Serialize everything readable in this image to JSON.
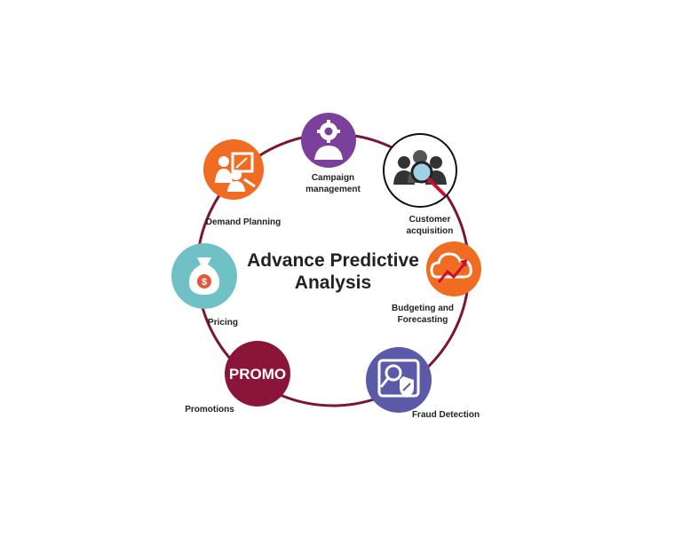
{
  "title": {
    "line1": "Advance Predictive",
    "line2": "Analysis"
  },
  "colors": {
    "ring": "#7a1532",
    "campaign": "#7b3f9c",
    "customer": "#ffffff",
    "budgeting": "#ef6c22",
    "fraud": "#5b5aa8",
    "promotions": "#8a1538",
    "pricing": "#6fc1c6",
    "demand": "#ef6c22"
  },
  "nodes": {
    "campaign": {
      "label1": "Campaign",
      "label2": "management",
      "icon": "gear-person-icon"
    },
    "customer": {
      "label1": "Customer",
      "label2": "acquisition",
      "icon": "people-magnifier-icon"
    },
    "budgeting": {
      "label1": "Budgeting and",
      "label2": "Forecasting",
      "icon": "cloud-growth-icon"
    },
    "fraud": {
      "label1": "Fraud Detection",
      "icon": "search-shield-icon"
    },
    "promotions": {
      "label1": "Promotions",
      "badge": "PROMO",
      "icon": "promo-badge-icon"
    },
    "pricing": {
      "label1": "Pricing",
      "icon": "money-bag-icon"
    },
    "demand": {
      "label1": "Demand Planning",
      "icon": "presentation-people-icon"
    }
  }
}
